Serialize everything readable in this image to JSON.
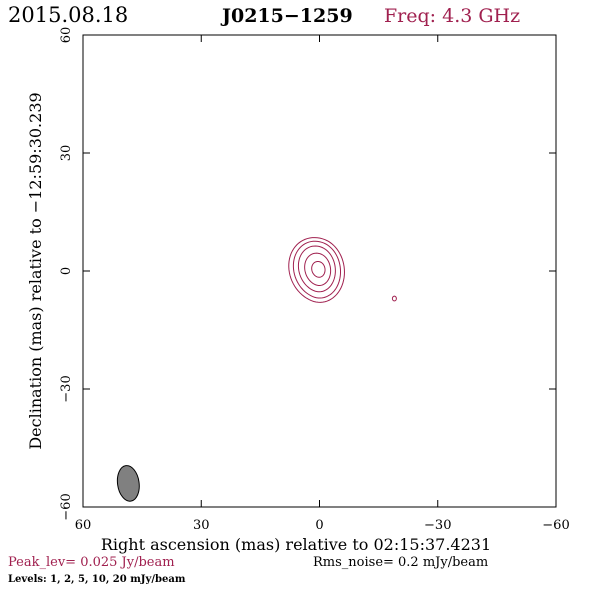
{
  "header": {
    "date": "2015.08.18",
    "source": "J0215−1259",
    "freq": "Freq: 4.3 GHz"
  },
  "chart_data": {
    "type": "contour",
    "xlabel": "Right ascension (mas) relative to 02:15:37.4231",
    "ylabel": "Declination (mas) relative to −12:59:30.239",
    "xlim": [
      60,
      -60
    ],
    "ylim": [
      -60,
      60
    ],
    "x_ticks": [
      {
        "value": 60,
        "label": "60"
      },
      {
        "value": 30,
        "label": "30"
      },
      {
        "value": 0,
        "label": "0"
      },
      {
        "value": -30,
        "label": "−30"
      },
      {
        "value": -60,
        "label": "−60"
      }
    ],
    "y_ticks": [
      {
        "value": 60,
        "label": "60"
      },
      {
        "value": 30,
        "label": "30"
      },
      {
        "value": 0,
        "label": "0"
      },
      {
        "value": -30,
        "label": "−30"
      },
      {
        "value": -60,
        "label": "−60"
      }
    ],
    "contour_color": "#a0204f",
    "contours": [
      {
        "level": 1,
        "cx": 0.3,
        "cy": 0.2,
        "rx": 6.6,
        "ry": 8.2,
        "tilt": -8,
        "skew": 1.0
      },
      {
        "level": 2,
        "cx": 0.3,
        "cy": 0.3,
        "rx": 5.6,
        "ry": 7.2,
        "tilt": -8,
        "skew": 0.8
      },
      {
        "level": 5,
        "cx": 0.4,
        "cy": 0.5,
        "rx": 4.4,
        "ry": 5.8,
        "tilt": -8,
        "skew": 0.6
      },
      {
        "level": 10,
        "cx": 0.3,
        "cy": 0.4,
        "rx": 3.1,
        "ry": 4.1,
        "tilt": -8,
        "skew": 0.4
      },
      {
        "level": 20,
        "cx": 0.2,
        "cy": 0.4,
        "rx": 1.6,
        "ry": 2.0,
        "tilt": -8,
        "skew": 0.2
      },
      {
        "level": 1,
        "cx": -19.0,
        "cy": -7.0,
        "rx": 0.5,
        "ry": 0.6,
        "tilt": 0,
        "skew": 0
      }
    ],
    "beam": {
      "x": 48.5,
      "y": -54,
      "major_mas": 6.5,
      "minor_mas": 4.2,
      "pa_deg": -8,
      "color": "#808080"
    }
  },
  "footer": {
    "peak": "Peak_lev=  0.025 Jy/beam",
    "rms": "Rms_noise=   0.2 mJy/beam",
    "levels": "Levels:   1,   2,   5,  10,  20 mJy/beam"
  },
  "colors": {
    "accent": "#a0204f",
    "text": "#000000"
  }
}
